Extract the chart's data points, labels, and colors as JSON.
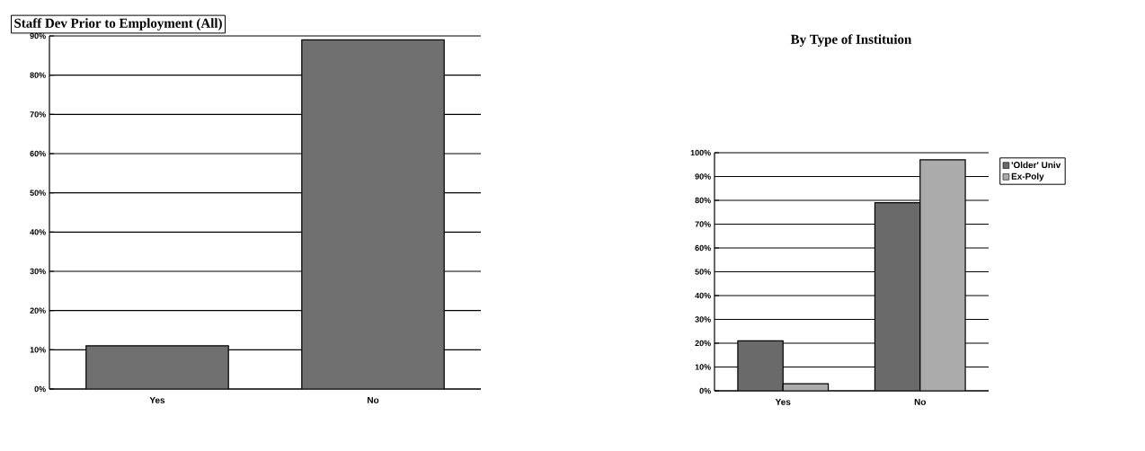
{
  "chart_data": [
    {
      "type": "bar",
      "title": "Staff Dev Prior to Employment (All)",
      "categories": [
        "Yes",
        "No"
      ],
      "series": [
        {
          "color": "#707070",
          "values": [
            11,
            89
          ]
        }
      ],
      "ylim": [
        0,
        90
      ],
      "yticks": [
        {
          "value": 0,
          "label": "0%"
        },
        {
          "value": 10,
          "label": "10%"
        },
        {
          "value": 20,
          "label": "20%"
        },
        {
          "value": 30,
          "label": "30%"
        },
        {
          "value": 40,
          "label": "40%"
        },
        {
          "value": 50,
          "label": "50%"
        },
        {
          "value": 60,
          "label": "60%"
        },
        {
          "value": 70,
          "label": "70%"
        },
        {
          "value": 80,
          "label": "80%"
        },
        {
          "value": 90,
          "label": "90%"
        }
      ],
      "grid": "y",
      "legend": false
    },
    {
      "type": "bar",
      "title": "By Type of Instituion",
      "categories": [
        "Yes",
        "No"
      ],
      "series": [
        {
          "name": "'Older' Univ",
          "color": "#6a6a6a",
          "values": [
            21,
            79
          ]
        },
        {
          "name": "Ex-Poly",
          "color": "#ababab",
          "values": [
            3,
            97
          ]
        }
      ],
      "ylim": [
        0,
        100
      ],
      "yticks": [
        {
          "value": 0,
          "label": "0%"
        },
        {
          "value": 10,
          "label": "10%"
        },
        {
          "value": 20,
          "label": "20%"
        },
        {
          "value": 30,
          "label": "30%"
        },
        {
          "value": 40,
          "label": "40%"
        },
        {
          "value": 50,
          "label": "50%"
        },
        {
          "value": 60,
          "label": "60%"
        },
        {
          "value": 70,
          "label": "70%"
        },
        {
          "value": 80,
          "label": "80%"
        },
        {
          "value": 90,
          "label": "90%"
        },
        {
          "value": 100,
          "label": "100%"
        }
      ],
      "grid": "y",
      "legend": "right"
    }
  ]
}
